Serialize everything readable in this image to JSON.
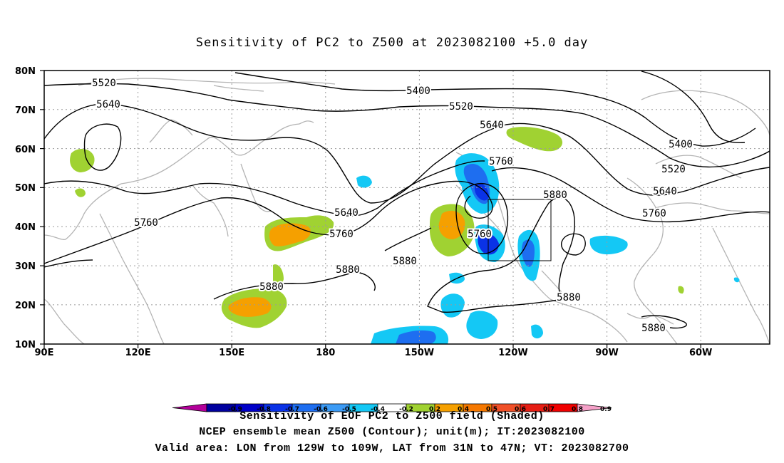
{
  "title": "Sensitivity of PC2 to Z500 at 2023082100 +5.0 day",
  "lat_labels": [
    "80N",
    "70N",
    "60N",
    "50N",
    "40N",
    "30N",
    "20N",
    "10N"
  ],
  "lon_labels": [
    "90E",
    "120E",
    "150E",
    "180",
    "150W",
    "120W",
    "90W",
    "60W"
  ],
  "contour_labels": [
    "5520",
    "5400",
    "5640",
    "5520",
    "5640",
    "5400",
    "5760",
    "5520",
    "5880",
    "5640",
    "5640",
    "5760",
    "5760",
    "5760",
    "5760",
    "5880",
    "5880",
    "5880",
    "5880",
    "5880"
  ],
  "colorbar": {
    "levels": [
      "-0.9",
      "-0.8",
      "-0.7",
      "-0.6",
      "-0.5",
      "-0.4",
      "-0.2",
      "0.2",
      "0.4",
      "0.5",
      "0.6",
      "0.7",
      "0.8",
      "0.9"
    ],
    "colors": [
      "#b3009a",
      "#00009e",
      "#0000c8",
      "#0a32e6",
      "#1e6ef0",
      "#3c9bf5",
      "#14c8f5",
      "#ffffff",
      "#a0d232",
      "#f5a000",
      "#f57800",
      "#f05028",
      "#e61e14",
      "#f00000",
      "#f5a0c8"
    ]
  },
  "valid_box": {
    "lon_from": "129W",
    "lon_to": "109W",
    "lat_from": "31N",
    "lat_to": "47N"
  },
  "caption": {
    "line1": "Sensitivity of EOF PC2 to Z500 field (Shaded)",
    "line2": "NCEP ensemble mean Z500 (Contour); unit(m); IT:2023082100",
    "line3": "Valid area: LON from 129W to 109W, LAT from 31N to 47N; VT: 2023082700"
  }
}
